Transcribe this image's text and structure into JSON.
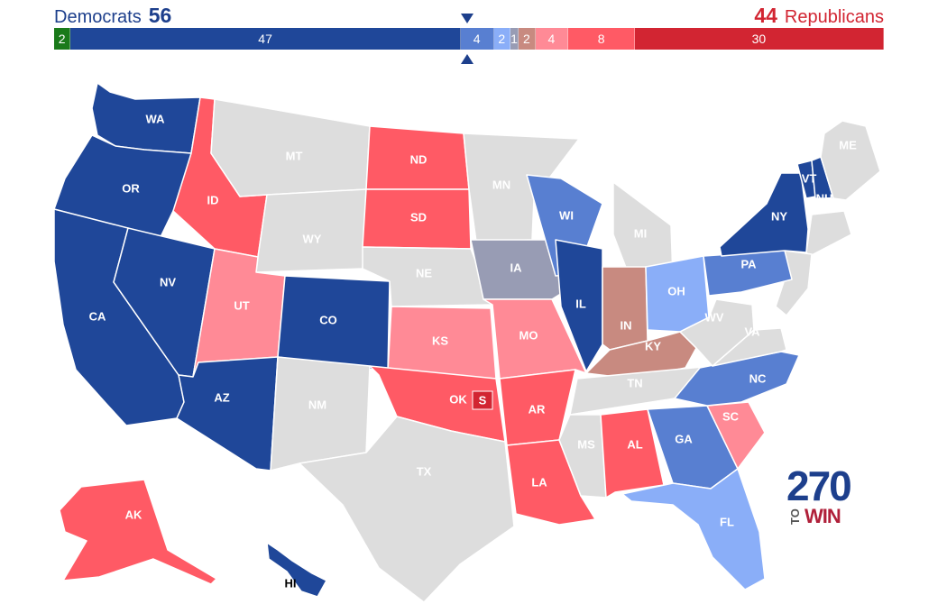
{
  "header": {
    "left_party": "Democrats",
    "left_total": "56",
    "right_total": "44",
    "right_party": "Republicans"
  },
  "colors": {
    "safe_dem": "#1f4799",
    "likely_dem": "#587fd1",
    "lean_dem": "#8aaef8",
    "tossup": "#989cb4",
    "tilt_rep": "#c88a80",
    "lean_rep": "#ff8a96",
    "likely_rep": "#ff5a65",
    "safe_rep": "#d22532",
    "other": "#1a7a1a",
    "no_race": "#dddddd"
  },
  "bar_segments": [
    {
      "label": "2",
      "count": 2,
      "rating": "other"
    },
    {
      "label": "47",
      "count": 47,
      "rating": "safe_dem"
    },
    {
      "label": "4",
      "count": 4,
      "rating": "likely_dem"
    },
    {
      "label": "2",
      "count": 2,
      "rating": "lean_dem"
    },
    {
      "label": "1",
      "count": 1,
      "rating": "tossup"
    },
    {
      "label": "2",
      "count": 2,
      "rating": "tilt_rep"
    },
    {
      "label": "4",
      "count": 4,
      "rating": "lean_rep"
    },
    {
      "label": "8",
      "count": 8,
      "rating": "likely_rep"
    },
    {
      "label": "30",
      "count": 30,
      "rating": "safe_rep"
    }
  ],
  "states": [
    {
      "abbr": "WA",
      "rating": "safe_dem"
    },
    {
      "abbr": "OR",
      "rating": "safe_dem"
    },
    {
      "abbr": "CA",
      "rating": "safe_dem"
    },
    {
      "abbr": "NV",
      "rating": "safe_dem"
    },
    {
      "abbr": "ID",
      "rating": "likely_rep"
    },
    {
      "abbr": "MT",
      "rating": "no_race"
    },
    {
      "abbr": "WY",
      "rating": "no_race"
    },
    {
      "abbr": "UT",
      "rating": "lean_rep"
    },
    {
      "abbr": "AZ",
      "rating": "safe_dem"
    },
    {
      "abbr": "CO",
      "rating": "safe_dem"
    },
    {
      "abbr": "NM",
      "rating": "no_race"
    },
    {
      "abbr": "ND",
      "rating": "likely_rep"
    },
    {
      "abbr": "SD",
      "rating": "likely_rep"
    },
    {
      "abbr": "NE",
      "rating": "no_race"
    },
    {
      "abbr": "KS",
      "rating": "lean_rep"
    },
    {
      "abbr": "OK",
      "rating": "likely_rep"
    },
    {
      "abbr": "TX",
      "rating": "no_race"
    },
    {
      "abbr": "MN",
      "rating": "no_race"
    },
    {
      "abbr": "IA",
      "rating": "tossup"
    },
    {
      "abbr": "MO",
      "rating": "lean_rep"
    },
    {
      "abbr": "AR",
      "rating": "likely_rep"
    },
    {
      "abbr": "LA",
      "rating": "likely_rep"
    },
    {
      "abbr": "WI",
      "rating": "likely_dem"
    },
    {
      "abbr": "IL",
      "rating": "safe_dem"
    },
    {
      "abbr": "MI",
      "rating": "no_race"
    },
    {
      "abbr": "IN",
      "rating": "tilt_rep"
    },
    {
      "abbr": "OH",
      "rating": "lean_dem"
    },
    {
      "abbr": "KY",
      "rating": "tilt_rep"
    },
    {
      "abbr": "TN",
      "rating": "no_race"
    },
    {
      "abbr": "MS",
      "rating": "no_race"
    },
    {
      "abbr": "AL",
      "rating": "likely_rep"
    },
    {
      "abbr": "GA",
      "rating": "likely_dem"
    },
    {
      "abbr": "FL",
      "rating": "lean_dem"
    },
    {
      "abbr": "SC",
      "rating": "lean_rep"
    },
    {
      "abbr": "NC",
      "rating": "likely_dem"
    },
    {
      "abbr": "VA",
      "rating": "no_race"
    },
    {
      "abbr": "WV",
      "rating": "no_race"
    },
    {
      "abbr": "PA",
      "rating": "likely_dem"
    },
    {
      "abbr": "NY",
      "rating": "safe_dem"
    },
    {
      "abbr": "VT",
      "rating": "safe_dem"
    },
    {
      "abbr": "NH",
      "rating": "safe_dem"
    },
    {
      "abbr": "ME",
      "rating": "no_race"
    },
    {
      "abbr": "AK",
      "rating": "likely_rep"
    },
    {
      "abbr": "HI",
      "rating": "safe_dem"
    }
  ],
  "special_badge": {
    "label": "S",
    "state": "OK"
  },
  "logo": {
    "number": "270",
    "to": "TO",
    "win": "WIN"
  }
}
